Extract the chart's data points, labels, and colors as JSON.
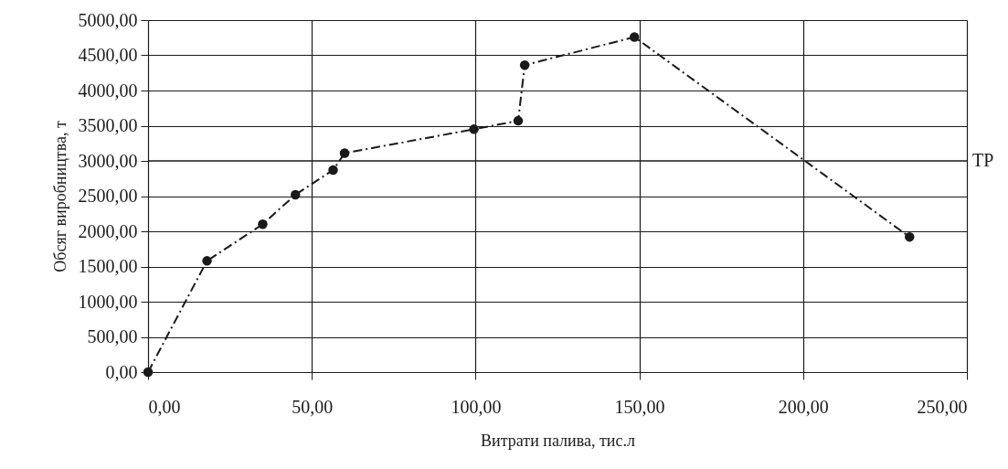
{
  "chart_data": {
    "type": "line",
    "xlabel": "Витрати палива, тис.л",
    "ylabel": "Обсяг виробництва, т",
    "x": [
      0,
      18,
      35,
      45,
      56.5,
      60,
      99.5,
      113,
      115,
      148.5,
      232.5
    ],
    "series": [
      {
        "color": "#1a1a1a",
        "values": [
          0,
          1580,
          2100,
          2520,
          2870,
          3110,
          3450,
          3570,
          4360,
          4760,
          1920
        ]
      }
    ],
    "xlim": [
      0,
      250
    ],
    "xticks": [
      {
        "value": 0,
        "label": "0,00"
      },
      {
        "value": 50,
        "label": "50,00"
      },
      {
        "value": 100,
        "label": "100,00"
      },
      {
        "value": 150,
        "label": "150,00"
      },
      {
        "value": 200,
        "label": "200,00"
      },
      {
        "value": 250,
        "label": "250,00"
      }
    ],
    "ylim": [
      0,
      5000
    ],
    "yticks": [
      {
        "value": 0,
        "label": "0,00"
      },
      {
        "value": 500,
        "label": "500,00"
      },
      {
        "value": 1000,
        "label": "1000,00"
      },
      {
        "value": 1500,
        "label": "1500,00"
      },
      {
        "value": 2000,
        "label": "2000,00"
      },
      {
        "value": 2500,
        "label": "2500,00"
      },
      {
        "value": 3000,
        "label": "3000,00"
      },
      {
        "value": 3500,
        "label": "3500,00"
      },
      {
        "value": 4000,
        "label": "4000,00"
      },
      {
        "value": 4500,
        "label": "4500,00"
      },
      {
        "value": 5000,
        "label": "5000,00"
      }
    ],
    "ref_lines": [
      {
        "axis": "y",
        "value": 3000,
        "label": "TP",
        "color": "#1a1a1a"
      }
    ],
    "grid": true,
    "marker": "circle",
    "line_style": "dashed"
  }
}
